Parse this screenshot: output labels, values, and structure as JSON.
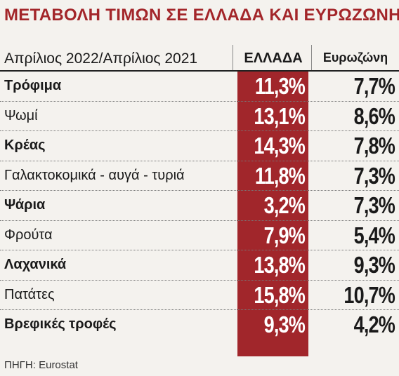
{
  "title": "ΜΕΤΑΒΟΛΗ ΤΙΜΩΝ ΣΕ ΕΛΛΑΔΑ ΚΑΙ ΕΥΡΩΖΩΝΗ",
  "header": {
    "period": "Απρίλιος 2022/Απρίλιος 2021",
    "col_greece": "ΕΛΛΑΔΑ",
    "col_eurozone": "Ευρωζώνη"
  },
  "source": "ΠΗΓΗ: Eurostat",
  "colors": {
    "accent": "#a1262b",
    "title": "#a3262a",
    "background": "#f4f2ee"
  },
  "chart_data": {
    "type": "table",
    "title": "ΜΕΤΑΒΟΛΗ ΤΙΜΩΝ ΣΕ ΕΛΛΑΔΑ ΚΑΙ ΕΥΡΩΖΩΝΗ",
    "columns": [
      "Απρίλιος 2022/Απρίλιος 2021",
      "ΕΛΛΑΔΑ",
      "Ευρωζώνη"
    ],
    "rows": [
      {
        "category": "Τρόφιμα",
        "greece": "11,3%",
        "eurozone": "7,7%",
        "bold": true
      },
      {
        "category": "Ψωμί",
        "greece": "13,1%",
        "eurozone": "8,6%",
        "bold": false
      },
      {
        "category": "Κρέας",
        "greece": "14,3%",
        "eurozone": "7,8%",
        "bold": true
      },
      {
        "category": "Γαλακτοκομικά - αυγά - τυριά",
        "greece": "11,8%",
        "eurozone": "7,3%",
        "bold": false
      },
      {
        "category": "Ψάρια",
        "greece": "3,2%",
        "eurozone": "7,3%",
        "bold": true
      },
      {
        "category": "Φρούτα",
        "greece": "7,9%",
        "eurozone": "5,4%",
        "bold": false
      },
      {
        "category": "Λαχανικά",
        "greece": "13,8%",
        "eurozone": "9,3%",
        "bold": true
      },
      {
        "category": "Πατάτες",
        "greece": "15,8%",
        "eurozone": "10,7%",
        "bold": false
      },
      {
        "category": "Βρεφικές τροφές",
        "greece": "9,3%",
        "eurozone": "4,2%",
        "bold": true
      }
    ]
  }
}
